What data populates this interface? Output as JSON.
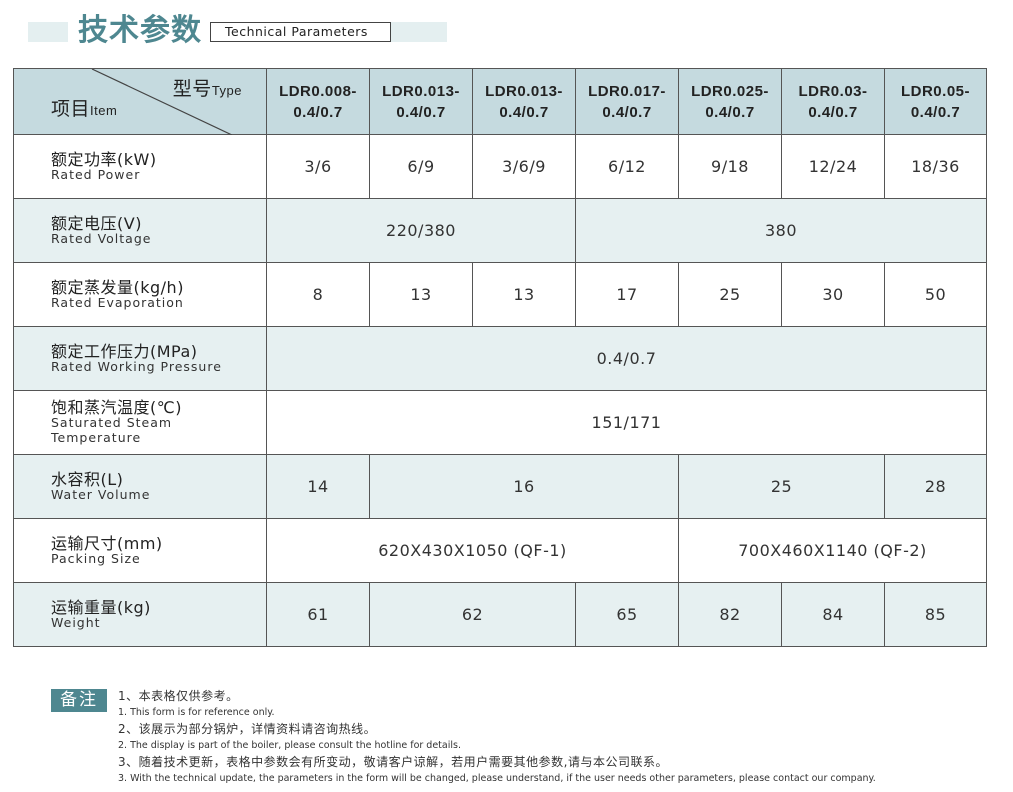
{
  "header": {
    "title": "技术参数",
    "subtitle": "Technical Parameters"
  },
  "colors": {
    "accent": "#4e8790",
    "header_bg": "#c5dadf",
    "stripe_bg": "#e6f0f1",
    "band": "#e4eff0"
  },
  "table": {
    "corner": {
      "type_cn": "型号",
      "type_en": "Type",
      "item_cn": "项目",
      "item_en": "Item"
    },
    "models": [
      "LDR0.008-\n0.4/0.7",
      "LDR0.013-\n0.4/0.7",
      "LDR0.013-\n0.4/0.7",
      "LDR0.017-\n0.4/0.7",
      "LDR0.025-\n0.4/0.7",
      "LDR0.03-\n0.4/0.7",
      "LDR0.05-\n0.4/0.7"
    ],
    "rows": [
      {
        "cn": "额定功率(kW)",
        "en": "Rated Power",
        "cells": [
          {
            "v": "3/6",
            "span": 1
          },
          {
            "v": "6/9",
            "span": 1
          },
          {
            "v": "3/6/9",
            "span": 1
          },
          {
            "v": "6/12",
            "span": 1
          },
          {
            "v": "9/18",
            "span": 1
          },
          {
            "v": "12/24",
            "span": 1
          },
          {
            "v": "18/36",
            "span": 1
          }
        ]
      },
      {
        "cn": "额定电压(V)",
        "en": "Rated Voltage",
        "cells": [
          {
            "v": "220/380",
            "span": 3
          },
          {
            "v": "380",
            "span": 4
          }
        ]
      },
      {
        "cn": "额定蒸发量(kg/h)",
        "en": "Rated Evaporation",
        "cells": [
          {
            "v": "8",
            "span": 1
          },
          {
            "v": "13",
            "span": 1
          },
          {
            "v": "13",
            "span": 1
          },
          {
            "v": "17",
            "span": 1
          },
          {
            "v": "25",
            "span": 1
          },
          {
            "v": "30",
            "span": 1
          },
          {
            "v": "50",
            "span": 1
          }
        ]
      },
      {
        "cn": "额定工作压力(MPa)",
        "en": "Rated Working Pressure",
        "cells": [
          {
            "v": "0.4/0.7",
            "span": 7
          }
        ]
      },
      {
        "cn": "饱和蒸汽温度(℃)",
        "en": "Saturated Steam Temperature",
        "cells": [
          {
            "v": "151/171",
            "span": 7
          }
        ]
      },
      {
        "cn": "水容积(L)",
        "en": "Water Volume",
        "cells": [
          {
            "v": "14",
            "span": 1
          },
          {
            "v": "16",
            "span": 3
          },
          {
            "v": "25",
            "span": 2
          },
          {
            "v": "28",
            "span": 1
          }
        ]
      },
      {
        "cn": "运输尺寸(mm)",
        "en": "Packing Size",
        "cells": [
          {
            "v": "620X430X1050 (QF-1)",
            "span": 4
          },
          {
            "v": "700X460X1140 (QF-2)",
            "span": 3
          }
        ]
      },
      {
        "cn": "运输重量(kg)",
        "en": "Weight",
        "cells": [
          {
            "v": "61",
            "span": 1
          },
          {
            "v": "62",
            "span": 2
          },
          {
            "v": "65",
            "span": 1
          },
          {
            "v": "82",
            "span": 1
          },
          {
            "v": "84",
            "span": 1
          },
          {
            "v": "85",
            "span": 1
          }
        ]
      }
    ]
  },
  "notes": {
    "label": "备注",
    "items": [
      {
        "cn": "1、本表格仅供参考。",
        "en": "1. This form is for reference only."
      },
      {
        "cn": "2、该展示为部分锅炉，详情资料请咨询热线。",
        "en": "2. The display is part of the boiler, please consult the hotline for details."
      },
      {
        "cn": "3、随着技术更新，表格中参数会有所变动，敬请客户谅解，若用户需要其他参数,请与本公司联系。",
        "en": "3. With the technical update, the parameters in the form will be changed, please understand, if the user needs other parameters, please contact our company."
      }
    ]
  }
}
